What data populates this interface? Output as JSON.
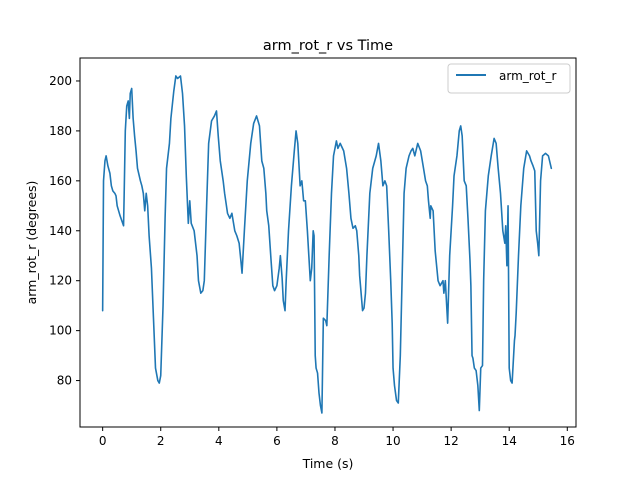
{
  "chart_data": {
    "type": "line",
    "title": "arm_rot_r vs Time",
    "xlabel": "Time (s)",
    "ylabel": "arm_rot_r (degrees)",
    "xlim": [
      -0.78,
      16.3
    ],
    "ylim": [
      61.4,
      209.2
    ],
    "xticks": [
      0,
      2,
      4,
      6,
      8,
      10,
      12,
      14,
      16
    ],
    "yticks": [
      80,
      100,
      120,
      140,
      160,
      180,
      200
    ],
    "grid": false,
    "legend": "top-right",
    "series": [
      {
        "name": "arm_rot_r",
        "color": "#1f77b4",
        "points": [
          [
            0.0,
            108
          ],
          [
            0.03,
            160
          ],
          [
            0.08,
            168
          ],
          [
            0.12,
            170
          ],
          [
            0.18,
            166
          ],
          [
            0.25,
            163
          ],
          [
            0.3,
            158
          ],
          [
            0.35,
            156
          ],
          [
            0.42,
            155
          ],
          [
            0.46,
            154
          ],
          [
            0.5,
            150
          ],
          [
            0.55,
            148
          ],
          [
            0.6,
            146
          ],
          [
            0.66,
            144
          ],
          [
            0.72,
            142
          ],
          [
            0.74,
            154
          ],
          [
            0.78,
            180
          ],
          [
            0.83,
            190
          ],
          [
            0.88,
            192
          ],
          [
            0.92,
            185
          ],
          [
            0.95,
            195
          ],
          [
            1.0,
            197
          ],
          [
            1.05,
            185
          ],
          [
            1.1,
            178
          ],
          [
            1.15,
            172
          ],
          [
            1.2,
            165
          ],
          [
            1.3,
            160
          ],
          [
            1.35,
            158
          ],
          [
            1.4,
            155
          ],
          [
            1.45,
            148
          ],
          [
            1.5,
            155
          ],
          [
            1.55,
            150
          ],
          [
            1.6,
            138
          ],
          [
            1.68,
            125
          ],
          [
            1.75,
            105
          ],
          [
            1.82,
            85
          ],
          [
            1.9,
            80
          ],
          [
            1.95,
            79
          ],
          [
            2.0,
            82
          ],
          [
            2.08,
            110
          ],
          [
            2.15,
            145
          ],
          [
            2.2,
            165
          ],
          [
            2.3,
            175
          ],
          [
            2.35,
            185
          ],
          [
            2.45,
            196
          ],
          [
            2.52,
            202
          ],
          [
            2.58,
            201
          ],
          [
            2.68,
            202
          ],
          [
            2.75,
            195
          ],
          [
            2.82,
            182
          ],
          [
            2.88,
            162
          ],
          [
            2.95,
            143
          ],
          [
            3.0,
            152
          ],
          [
            3.05,
            143
          ],
          [
            3.15,
            140
          ],
          [
            3.25,
            130
          ],
          [
            3.3,
            120
          ],
          [
            3.38,
            115
          ],
          [
            3.45,
            116
          ],
          [
            3.5,
            120
          ],
          [
            3.58,
            150
          ],
          [
            3.65,
            175
          ],
          [
            3.75,
            184
          ],
          [
            3.85,
            186
          ],
          [
            3.92,
            188
          ],
          [
            3.98,
            178
          ],
          [
            4.05,
            168
          ],
          [
            4.15,
            160
          ],
          [
            4.2,
            155
          ],
          [
            4.3,
            147
          ],
          [
            4.38,
            145
          ],
          [
            4.45,
            147
          ],
          [
            4.55,
            140
          ],
          [
            4.62,
            138
          ],
          [
            4.7,
            135
          ],
          [
            4.76,
            128
          ],
          [
            4.8,
            123
          ],
          [
            4.88,
            140
          ],
          [
            4.98,
            160
          ],
          [
            5.1,
            175
          ],
          [
            5.2,
            183
          ],
          [
            5.3,
            186
          ],
          [
            5.4,
            182
          ],
          [
            5.48,
            168
          ],
          [
            5.55,
            165
          ],
          [
            5.62,
            155
          ],
          [
            5.65,
            148
          ],
          [
            5.72,
            142
          ],
          [
            5.8,
            128
          ],
          [
            5.86,
            118
          ],
          [
            5.92,
            116
          ],
          [
            6.0,
            118
          ],
          [
            6.08,
            125
          ],
          [
            6.12,
            130
          ],
          [
            6.18,
            121
          ],
          [
            6.22,
            112
          ],
          [
            6.28,
            108
          ],
          [
            6.32,
            120
          ],
          [
            6.4,
            140
          ],
          [
            6.5,
            158
          ],
          [
            6.6,
            172
          ],
          [
            6.66,
            180
          ],
          [
            6.72,
            175
          ],
          [
            6.8,
            158
          ],
          [
            6.86,
            160
          ],
          [
            6.92,
            152
          ],
          [
            6.98,
            152
          ],
          [
            7.05,
            140
          ],
          [
            7.1,
            130
          ],
          [
            7.15,
            120
          ],
          [
            7.2,
            125
          ],
          [
            7.25,
            140
          ],
          [
            7.28,
            138
          ],
          [
            7.32,
            90
          ],
          [
            7.35,
            85
          ],
          [
            7.4,
            83
          ],
          [
            7.45,
            75
          ],
          [
            7.5,
            70
          ],
          [
            7.55,
            67
          ],
          [
            7.6,
            105
          ],
          [
            7.68,
            104
          ],
          [
            7.72,
            102
          ],
          [
            7.8,
            130
          ],
          [
            7.88,
            155
          ],
          [
            7.95,
            170
          ],
          [
            8.05,
            176
          ],
          [
            8.1,
            173
          ],
          [
            8.18,
            175
          ],
          [
            8.3,
            172
          ],
          [
            8.4,
            165
          ],
          [
            8.48,
            155
          ],
          [
            8.55,
            145
          ],
          [
            8.62,
            141
          ],
          [
            8.7,
            142
          ],
          [
            8.75,
            140
          ],
          [
            8.82,
            130
          ],
          [
            8.85,
            122
          ],
          [
            8.9,
            115
          ],
          [
            8.95,
            108
          ],
          [
            9.0,
            109
          ],
          [
            9.05,
            115
          ],
          [
            9.1,
            130
          ],
          [
            9.2,
            155
          ],
          [
            9.3,
            165
          ],
          [
            9.42,
            170
          ],
          [
            9.5,
            175
          ],
          [
            9.58,
            168
          ],
          [
            9.65,
            158
          ],
          [
            9.72,
            160
          ],
          [
            9.78,
            158
          ],
          [
            9.85,
            140
          ],
          [
            9.92,
            120
          ],
          [
            9.97,
            103
          ],
          [
            10.0,
            85
          ],
          [
            10.05,
            78
          ],
          [
            10.12,
            72
          ],
          [
            10.18,
            71
          ],
          [
            10.25,
            90
          ],
          [
            10.32,
            125
          ],
          [
            10.38,
            155
          ],
          [
            10.45,
            165
          ],
          [
            10.55,
            170
          ],
          [
            10.62,
            172
          ],
          [
            10.68,
            173
          ],
          [
            10.75,
            170
          ],
          [
            10.85,
            175
          ],
          [
            10.95,
            172
          ],
          [
            11.05,
            165
          ],
          [
            11.12,
            160
          ],
          [
            11.18,
            158
          ],
          [
            11.22,
            152
          ],
          [
            11.28,
            145
          ],
          [
            11.3,
            150
          ],
          [
            11.38,
            148
          ],
          [
            11.45,
            132
          ],
          [
            11.55,
            120
          ],
          [
            11.62,
            118
          ],
          [
            11.72,
            120
          ],
          [
            11.75,
            115
          ],
          [
            11.8,
            120
          ],
          [
            11.88,
            103
          ],
          [
            11.95,
            130
          ],
          [
            12.05,
            150
          ],
          [
            12.1,
            162
          ],
          [
            12.2,
            170
          ],
          [
            12.28,
            180
          ],
          [
            12.33,
            182
          ],
          [
            12.38,
            178
          ],
          [
            12.45,
            160
          ],
          [
            12.52,
            158
          ],
          [
            12.58,
            145
          ],
          [
            12.65,
            128
          ],
          [
            12.68,
            118
          ],
          [
            12.72,
            90
          ],
          [
            12.75,
            89
          ],
          [
            12.8,
            85
          ],
          [
            12.86,
            84
          ],
          [
            12.92,
            78
          ],
          [
            12.97,
            68
          ],
          [
            13.02,
            85
          ],
          [
            13.08,
            86
          ],
          [
            13.12,
            120
          ],
          [
            13.18,
            148
          ],
          [
            13.28,
            162
          ],
          [
            13.38,
            170
          ],
          [
            13.48,
            177
          ],
          [
            13.55,
            175
          ],
          [
            13.62,
            165
          ],
          [
            13.7,
            155
          ],
          [
            13.78,
            140
          ],
          [
            13.85,
            135
          ],
          [
            13.88,
            142
          ],
          [
            13.92,
            126
          ],
          [
            13.96,
            150
          ],
          [
            14.0,
            85
          ],
          [
            14.05,
            80
          ],
          [
            14.1,
            79
          ],
          [
            14.18,
            96
          ],
          [
            14.2,
            98
          ],
          [
            14.24,
            107
          ],
          [
            14.32,
            130
          ],
          [
            14.4,
            150
          ],
          [
            14.5,
            165
          ],
          [
            14.6,
            172
          ],
          [
            14.7,
            170
          ],
          [
            14.75,
            168
          ],
          [
            14.82,
            166
          ],
          [
            14.88,
            164
          ],
          [
            14.93,
            140
          ],
          [
            14.98,
            135
          ],
          [
            15.02,
            130
          ],
          [
            15.08,
            160
          ],
          [
            15.15,
            170
          ],
          [
            15.25,
            171
          ],
          [
            15.35,
            170
          ],
          [
            15.45,
            165
          ]
        ]
      }
    ]
  }
}
